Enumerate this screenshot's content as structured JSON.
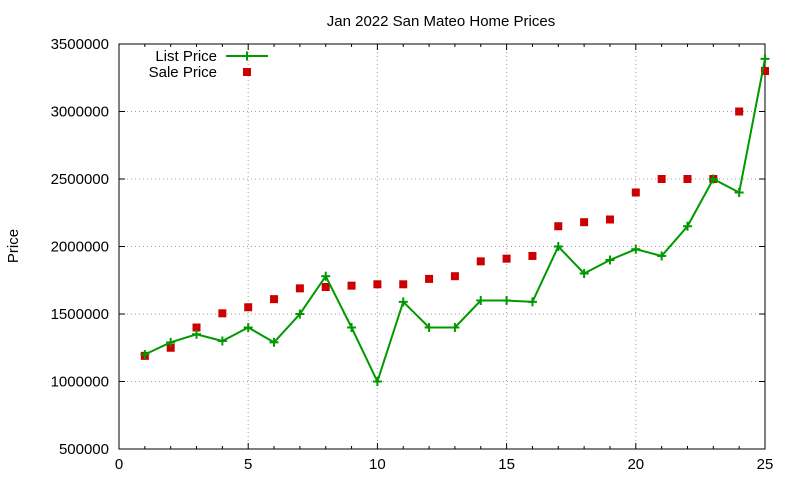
{
  "chart_data": {
    "type": "line",
    "title": "Jan 2022 San Mateo Home Prices",
    "xlabel": "",
    "ylabel": "Price",
    "xlim": [
      0,
      25
    ],
    "ylim": [
      500000,
      3500000
    ],
    "x_ticks": [
      0,
      5,
      10,
      15,
      20,
      25
    ],
    "x_tick_labels": [
      "0",
      "5",
      "10",
      "15",
      "20",
      "25"
    ],
    "y_ticks": [
      500000,
      1000000,
      1500000,
      2000000,
      2500000,
      3000000,
      3500000
    ],
    "y_tick_labels": [
      "500000",
      "1000000",
      "1500000",
      "2000000",
      "2500000",
      "3000000",
      "3500000"
    ],
    "grid": true,
    "legend_position": "top-left",
    "x": [
      1,
      2,
      3,
      4,
      5,
      6,
      7,
      8,
      9,
      10,
      11,
      12,
      13,
      14,
      15,
      16,
      17,
      18,
      19,
      20,
      21,
      22,
      23,
      24,
      25
    ],
    "series": [
      {
        "name": "List Price",
        "style": "line-with-plus-markers",
        "color": "#009900",
        "values": [
          1200000,
          1290000,
          1350000,
          1300000,
          1400000,
          1290000,
          1500000,
          1780000,
          1400000,
          1000000,
          1590000,
          1400000,
          1400000,
          1600000,
          1600000,
          1590000,
          2000000,
          1800000,
          1900000,
          1980000,
          1930000,
          2150000,
          2500000,
          2400000,
          3390000
        ]
      },
      {
        "name": "Sale Price",
        "style": "square-markers",
        "color": "#cc0000",
        "values": [
          1190000,
          1250000,
          1400000,
          1505000,
          1550000,
          1610000,
          1690000,
          1700000,
          1710000,
          1720000,
          1720000,
          1760000,
          1780000,
          1890000,
          1910000,
          1930000,
          2150000,
          2180000,
          2200000,
          2400000,
          2500000,
          2500000,
          2500000,
          3000000,
          3300000
        ]
      }
    ]
  }
}
